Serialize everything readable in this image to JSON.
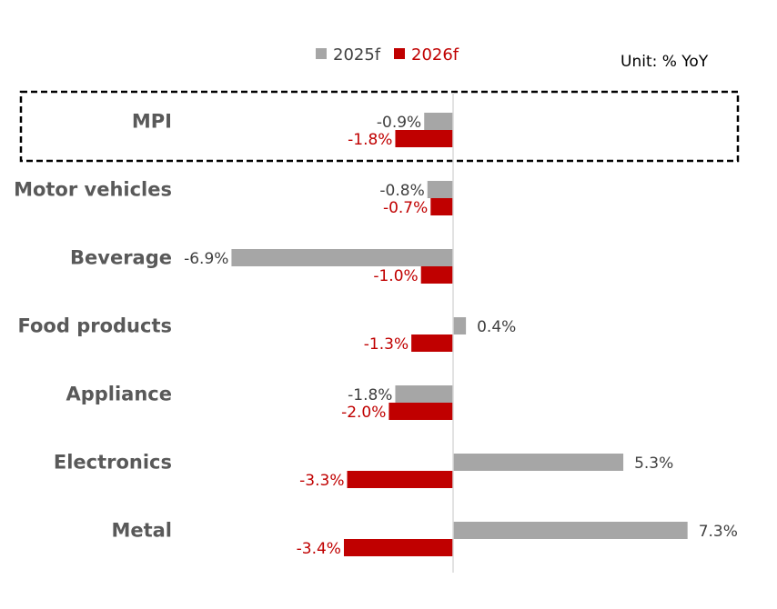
{
  "chart_data": {
    "type": "bar",
    "orientation": "horizontal",
    "categories": [
      "MPI",
      "Motor vehicles",
      "Beverage",
      "Food products",
      "Appliance",
      "Electronics",
      "Metal"
    ],
    "series": [
      {
        "name": "2025f",
        "color": "#a6a6a6",
        "label_color": "#404040",
        "values": [
          -0.9,
          -0.8,
          -6.9,
          0.4,
          -1.8,
          5.3,
          7.3
        ]
      },
      {
        "name": "2026f",
        "color": "#c00000",
        "label_color": "#c00000",
        "values": [
          -1.8,
          -0.7,
          -1.0,
          -1.3,
          -2.0,
          -3.3,
          -3.4
        ]
      }
    ],
    "unit": "Unit: % YoY",
    "highlighted_category": "MPI",
    "axis_color": "#d9d9d9",
    "label_suffix": "%",
    "legend": "top",
    "grid": false
  }
}
